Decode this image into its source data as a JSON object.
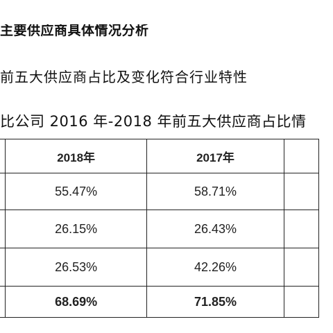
{
  "heading1": "主要供应商具体情况分析",
  "heading2": "前五大供应商占比及变化符合行业特性",
  "heading3": "比公司 2016 年-2018 年前五大供应商占比情",
  "table": {
    "columns": [
      "",
      "2018年",
      "2017年",
      ""
    ],
    "rows": [
      [
        "",
        "55.47%",
        "58.71%",
        ""
      ],
      [
        "",
        "26.15%",
        "26.43%",
        ""
      ],
      [
        "",
        "26.53%",
        "42.26%",
        ""
      ],
      [
        "",
        "68.69%",
        "71.85%",
        ""
      ]
    ]
  }
}
